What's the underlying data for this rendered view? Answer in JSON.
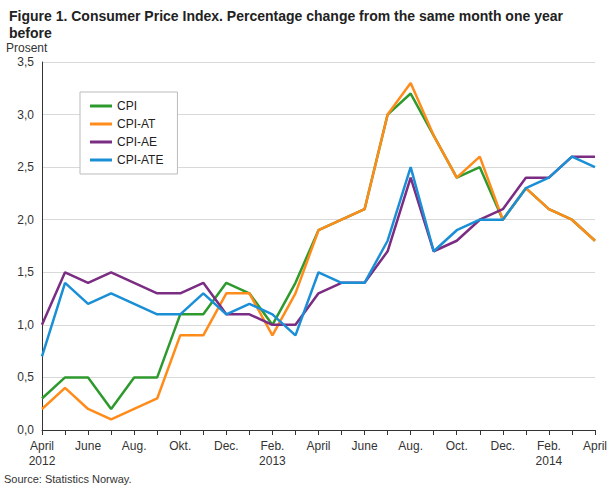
{
  "chart_data": {
    "type": "line",
    "title": "Figure 1. Consumer Price Index. Percentage change from the same month one year before",
    "y_label": "Prosent",
    "source": "Source: Statistics Norway.",
    "categories": [
      "April\n2012",
      null,
      "June",
      null,
      "Aug.",
      null,
      "Okt.",
      null,
      "Dec.",
      null,
      "Feb.\n2013",
      null,
      "April",
      null,
      "June",
      null,
      "Aug.",
      null,
      "Oct.",
      null,
      "Dec.",
      null,
      "Feb.\n2014",
      null,
      "April"
    ],
    "series": [
      {
        "name": "CPI",
        "color": "#2e9a2e",
        "values": [
          0.3,
          0.5,
          0.5,
          0.2,
          0.5,
          0.5,
          1.1,
          1.1,
          1.4,
          1.3,
          1.0,
          1.4,
          1.9,
          2.0,
          2.1,
          3.0,
          3.2,
          2.8,
          2.4,
          2.5,
          2.0,
          2.3,
          2.1,
          2.0,
          1.8
        ]
      },
      {
        "name": "CPI-AT",
        "color": "#ff8c1a",
        "values": [
          0.2,
          0.4,
          0.2,
          0.1,
          0.2,
          0.3,
          0.9,
          0.9,
          1.3,
          1.3,
          0.9,
          1.3,
          1.9,
          2.0,
          2.1,
          3.0,
          3.3,
          2.8,
          2.4,
          2.6,
          2.0,
          2.3,
          2.1,
          2.0,
          1.8
        ]
      },
      {
        "name": "CPI-AE",
        "color": "#7b2c83",
        "values": [
          1.0,
          1.5,
          1.4,
          1.5,
          1.4,
          1.3,
          1.3,
          1.4,
          1.1,
          1.1,
          1.0,
          1.0,
          1.3,
          1.4,
          1.4,
          1.7,
          2.4,
          1.7,
          1.8,
          2.0,
          2.1,
          2.4,
          2.4,
          2.6,
          2.6
        ]
      },
      {
        "name": "CPI-ATE",
        "color": "#1a8fd6",
        "values": [
          0.7,
          1.4,
          1.2,
          1.3,
          1.2,
          1.1,
          1.1,
          1.3,
          1.1,
          1.2,
          1.1,
          0.9,
          1.5,
          1.4,
          1.4,
          1.8,
          2.5,
          1.7,
          1.9,
          2.0,
          2.0,
          2.3,
          2.4,
          2.6,
          2.5
        ]
      }
    ],
    "ylim": [
      0,
      3.5
    ],
    "yticks": [
      {
        "value": 0,
        "label": "0,0"
      },
      {
        "value": 0.5,
        "label": "0,5"
      },
      {
        "value": 1,
        "label": "1,0"
      },
      {
        "value": 1.5,
        "label": "1,5"
      },
      {
        "value": 2,
        "label": "2,0"
      },
      {
        "value": 2.5,
        "label": "2,5"
      },
      {
        "value": 3,
        "label": "3,0"
      },
      {
        "value": 3.5,
        "label": "3,5"
      }
    ],
    "grid": true,
    "legend": "top-left"
  }
}
